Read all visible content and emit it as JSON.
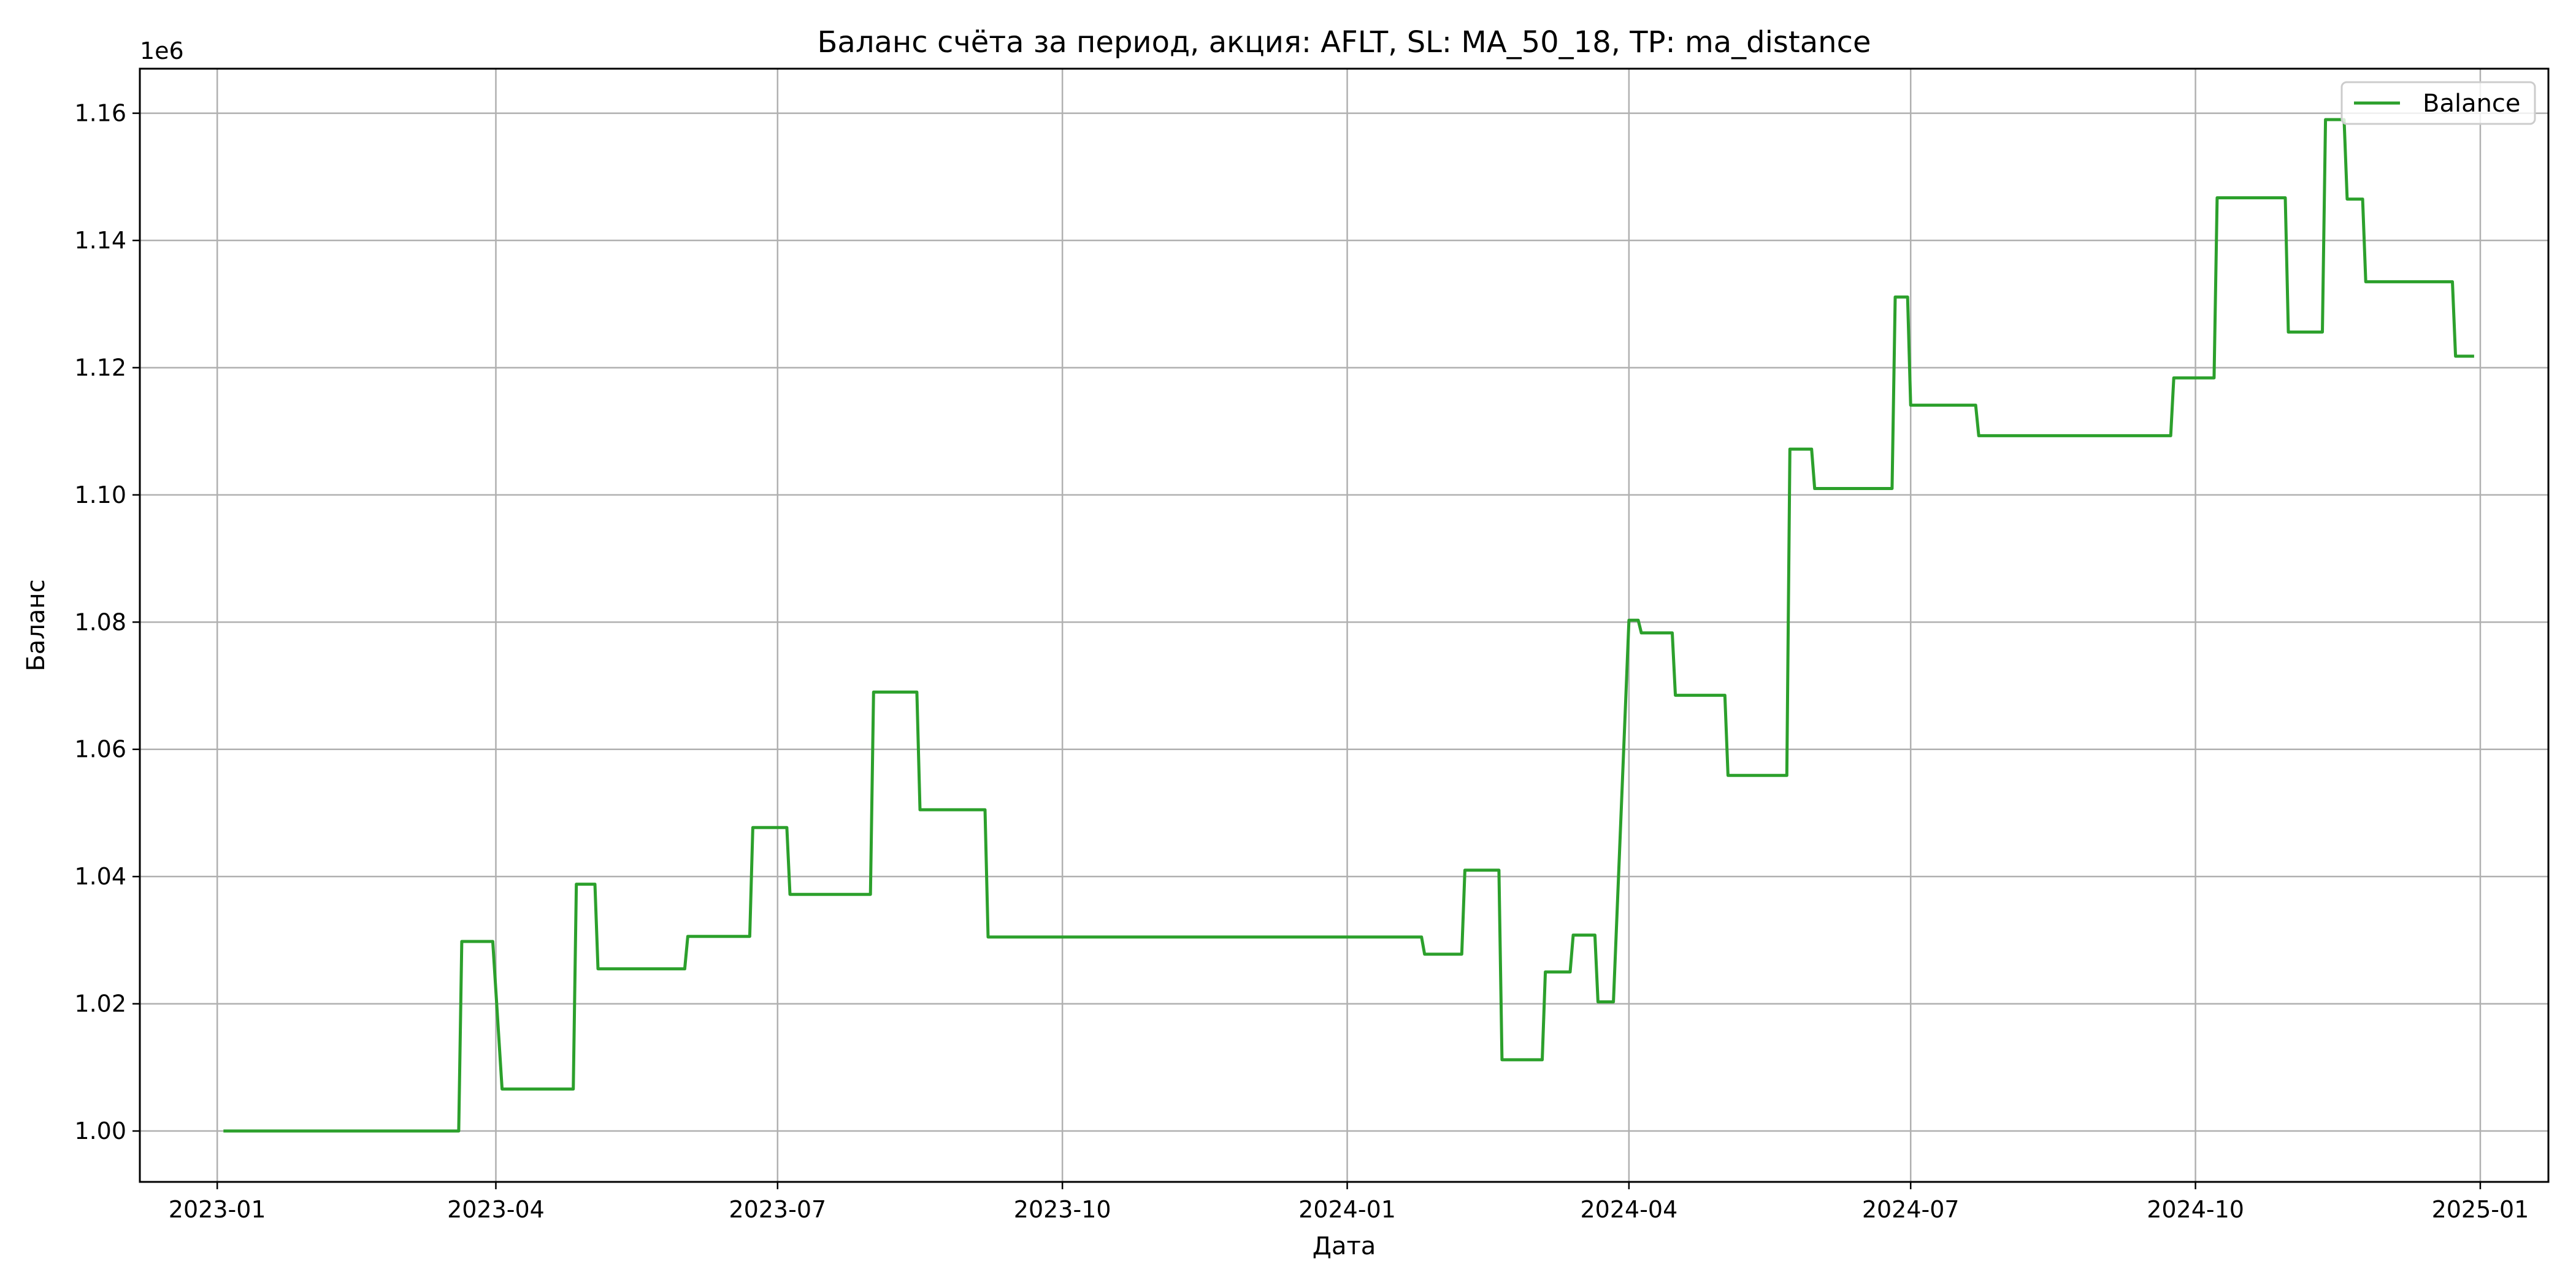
{
  "chart_data": {
    "type": "line",
    "title": "Баланс счёта за период, акция: AFLT, SL: MA_50_18, TP: ma_distance",
    "xlabel": "Дата",
    "ylabel": "Баланс",
    "y_offset_label": "1e6",
    "x_tick_labels": [
      "2023-01",
      "2023-04",
      "2023-07",
      "2023-10",
      "2024-01",
      "2024-04",
      "2024-07",
      "2024-10",
      "2025-01"
    ],
    "y_tick_labels": [
      "1.00",
      "1.02",
      "1.04",
      "1.06",
      "1.08",
      "1.10",
      "1.12",
      "1.14",
      "1.16"
    ],
    "xlim": [
      "2022-12-07",
      "2025-01-23"
    ],
    "ylim": [
      0.992,
      1.167
    ],
    "grid": true,
    "legend_position": "top-right",
    "series_color": "#2ca02c",
    "series": [
      {
        "name": "Balance",
        "x": [
          "2023-01-03",
          "2023-03-20",
          "2023-03-21",
          "2023-03-31",
          "2023-04-03",
          "2023-04-26",
          "2023-04-27",
          "2023-05-03",
          "2023-05-04",
          "2023-06-01",
          "2023-06-02",
          "2023-06-22",
          "2023-06-23",
          "2023-07-04",
          "2023-07-05",
          "2023-07-31",
          "2023-08-01",
          "2023-08-15",
          "2023-08-16",
          "2023-09-06",
          "2023-09-07",
          "2024-01-25",
          "2024-01-26",
          "2024-02-07",
          "2024-02-08",
          "2024-02-19",
          "2024-02-20",
          "2024-03-04",
          "2024-03-05",
          "2024-03-13",
          "2024-03-14",
          "2024-03-21",
          "2024-03-22",
          "2024-03-27",
          "2024-04-01",
          "2024-04-04",
          "2024-04-05",
          "2024-04-15",
          "2024-04-16",
          "2024-05-02",
          "2024-05-03",
          "2024-05-22",
          "2024-05-23",
          "2024-05-30",
          "2024-05-31",
          "2024-06-25",
          "2024-06-26",
          "2024-06-30",
          "2024-07-01",
          "2024-07-22",
          "2024-07-23",
          "2024-09-23",
          "2024-09-24",
          "2024-10-07",
          "2024-10-08",
          "2024-10-30",
          "2024-10-31",
          "2024-11-11",
          "2024-11-12",
          "2024-11-18",
          "2024-11-19",
          "2024-11-24",
          "2024-11-25",
          "2024-12-23",
          "2024-12-24",
          "2024-12-30"
        ],
        "values": [
          1.0,
          1.0,
          1.0298,
          1.0298,
          1.0066,
          1.0066,
          1.0388,
          1.0388,
          1.0255,
          1.0255,
          1.0306,
          1.0306,
          1.0477,
          1.0477,
          1.0372,
          1.0372,
          1.069,
          1.069,
          1.0505,
          1.0505,
          1.0305,
          1.0305,
          1.0278,
          1.0278,
          1.041,
          1.041,
          1.0112,
          1.0112,
          1.025,
          1.025,
          1.0308,
          1.0308,
          1.0203,
          1.0203,
          1.0803,
          1.0803,
          1.0783,
          1.0783,
          1.0685,
          1.0685,
          1.0559,
          1.0559,
          1.1072,
          1.1072,
          1.101,
          1.101,
          1.1311,
          1.1311,
          1.1141,
          1.1141,
          1.1093,
          1.1093,
          1.1184,
          1.1184,
          1.1467,
          1.1467,
          1.1256,
          1.1256,
          1.159,
          1.159,
          1.1465,
          1.1465,
          1.1335,
          1.1335,
          1.1218,
          1.1218
        ]
      }
    ]
  }
}
